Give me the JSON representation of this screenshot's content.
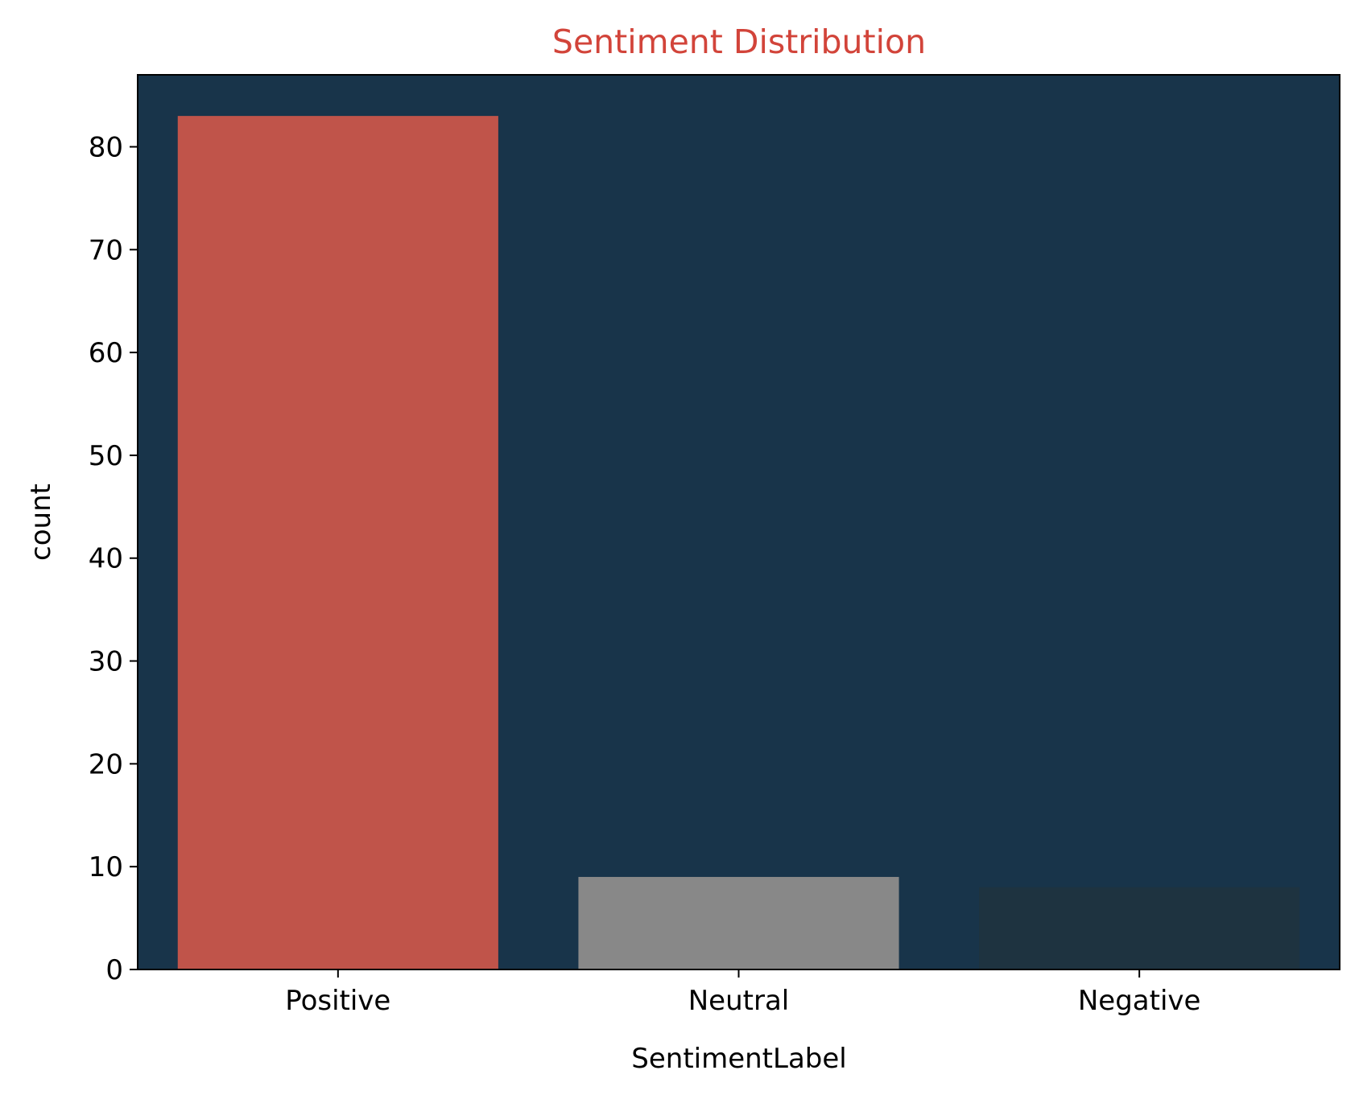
{
  "colors": {
    "title": "#D2443A",
    "plot_background": "#18344A",
    "axis": "#000000"
  },
  "chart_data": {
    "type": "bar",
    "title": "Sentiment Distribution",
    "xlabel": "SentimentLabel",
    "ylabel": "count",
    "categories": [
      "Positive",
      "Neutral",
      "Negative"
    ],
    "values": [
      83,
      9,
      8
    ],
    "bar_colors": [
      "#C0544A",
      "#888888",
      "#1E3340"
    ],
    "ylim": [
      0,
      87
    ],
    "yticks": [
      0,
      10,
      20,
      30,
      40,
      50,
      60,
      70,
      80
    ],
    "grid": false,
    "legend": "none"
  }
}
